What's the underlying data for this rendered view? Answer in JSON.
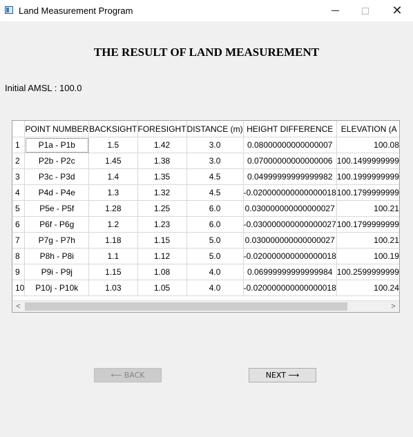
{
  "window": {
    "title": "Land Measurement Program",
    "minimize": "",
    "maximize": "",
    "close": "✕"
  },
  "page": {
    "title": "THE RESULT OF LAND MEASUREMENT",
    "amsl_label": "Initial AMSL : 100.0"
  },
  "table": {
    "columns": [
      "POINT NUMBER",
      "BACKSIGHT",
      "FORESIGHT",
      "DISTANCE (m)",
      "HEIGHT DIFFERENCE",
      "ELEVATION (A"
    ],
    "rows": [
      {
        "n": "1",
        "point": "P1a - P1b",
        "backsight": "1.5",
        "foresight": "1.42",
        "distance": "3.0",
        "height_diff": "0.08000000000000007",
        "elevation": "100.08"
      },
      {
        "n": "2",
        "point": "P2b - P2c",
        "backsight": "1.45",
        "foresight": "1.38",
        "distance": "3.0",
        "height_diff": "0.07000000000000006",
        "elevation": "100.1499999999"
      },
      {
        "n": "3",
        "point": "P3c - P3d",
        "backsight": "1.4",
        "foresight": "1.35",
        "distance": "4.5",
        "height_diff": "0.04999999999999982",
        "elevation": "100.1999999999"
      },
      {
        "n": "4",
        "point": "P4d - P4e",
        "backsight": "1.3",
        "foresight": "1.32",
        "distance": "4.5",
        "height_diff": "-0.020000000000000018",
        "elevation": "100.1799999999"
      },
      {
        "n": "5",
        "point": "P5e - P5f",
        "backsight": "1.28",
        "foresight": "1.25",
        "distance": "6.0",
        "height_diff": "0.030000000000000027",
        "elevation": "100.21"
      },
      {
        "n": "6",
        "point": "P6f - P6g",
        "backsight": "1.2",
        "foresight": "1.23",
        "distance": "6.0",
        "height_diff": "-0.030000000000000027",
        "elevation": "100.1799999999"
      },
      {
        "n": "7",
        "point": "P7g - P7h",
        "backsight": "1.18",
        "foresight": "1.15",
        "distance": "5.0",
        "height_diff": "0.030000000000000027",
        "elevation": "100.21"
      },
      {
        "n": "8",
        "point": "P8h - P8i",
        "backsight": "1.1",
        "foresight": "1.12",
        "distance": "5.0",
        "height_diff": "-0.020000000000000018",
        "elevation": "100.19"
      },
      {
        "n": "9",
        "point": "P9i - P9j",
        "backsight": "1.15",
        "foresight": "1.08",
        "distance": "4.0",
        "height_diff": "0.06999999999999984",
        "elevation": "100.2599999999"
      },
      {
        "n": "10",
        "point": "P10j - P10k",
        "backsight": "1.03",
        "foresight": "1.05",
        "distance": "4.0",
        "height_diff": "-0.020000000000000018",
        "elevation": "100.24"
      }
    ],
    "scroll_left": "<",
    "scroll_right": ">"
  },
  "buttons": {
    "back": "⟵ BACK",
    "next": "NEXT ⟶"
  }
}
